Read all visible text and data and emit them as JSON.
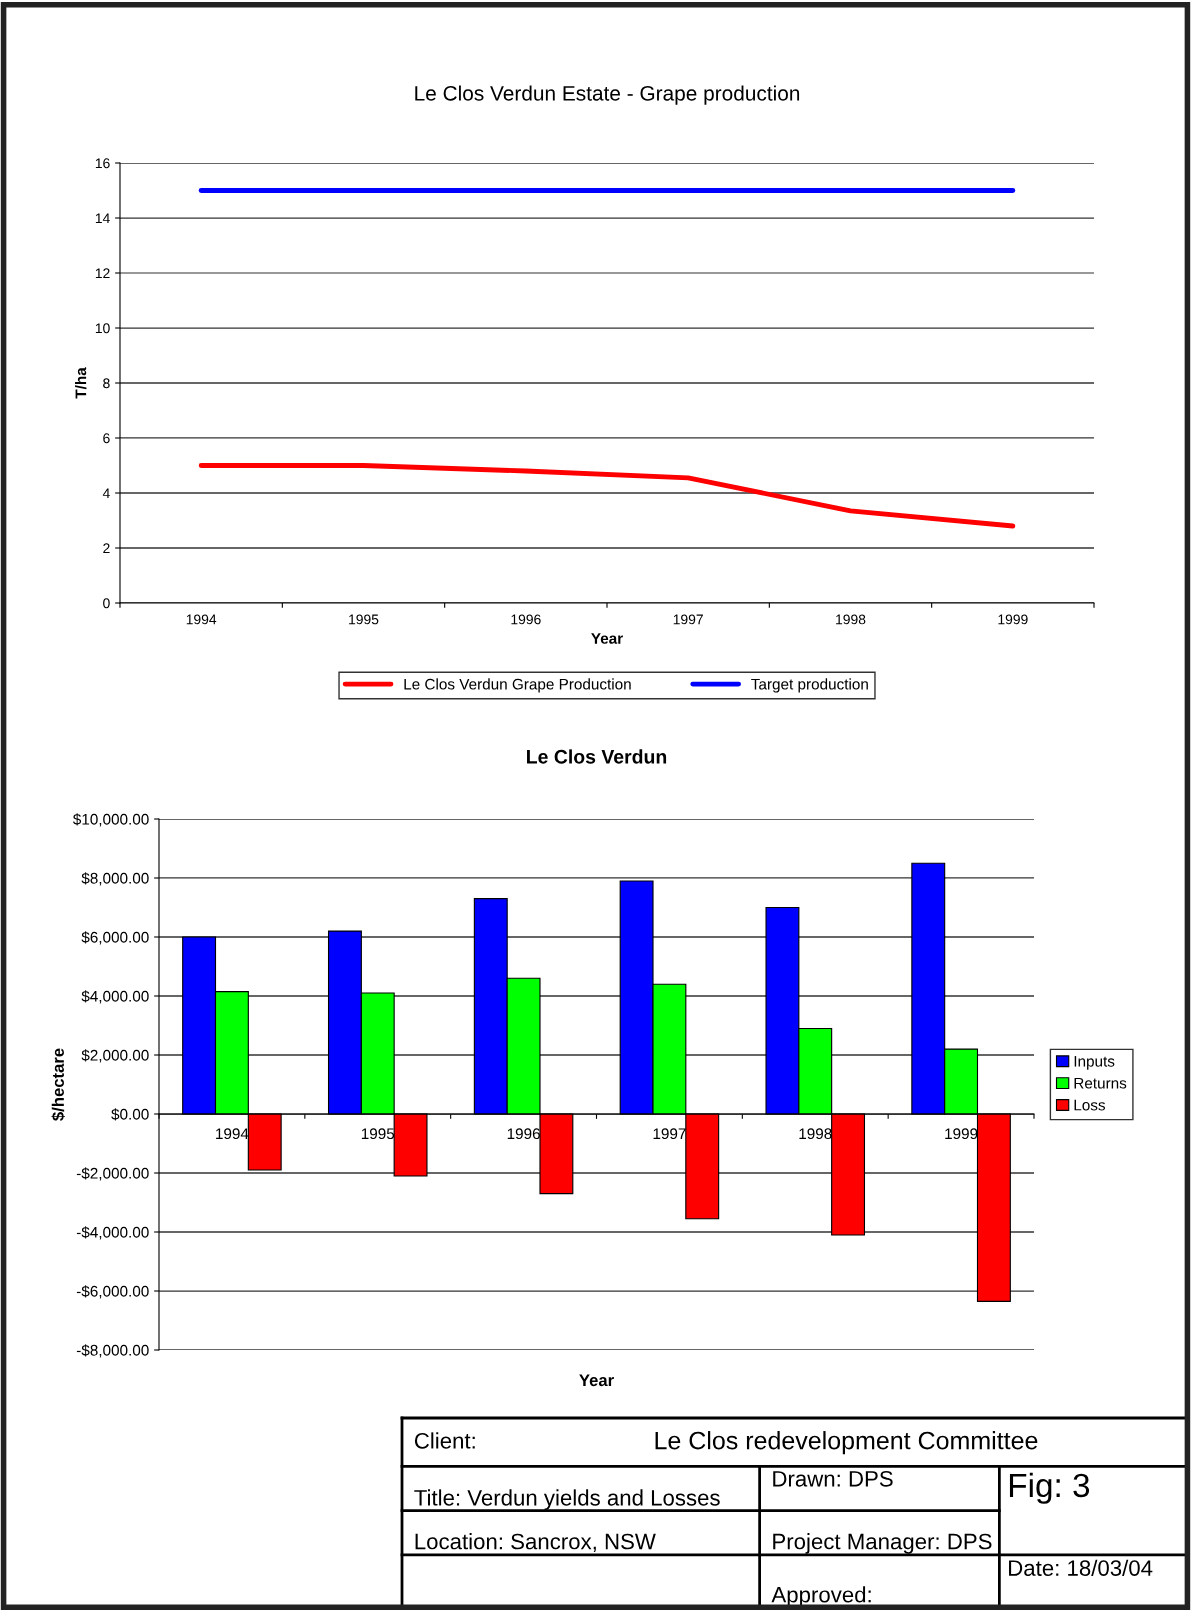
{
  "chart_data": [
    {
      "type": "line",
      "title": "Le Clos Verdun Estate - Grape production",
      "xlabel": "Year",
      "ylabel": "T/ha",
      "categories": [
        "1994",
        "1995",
        "1996",
        "1997",
        "1998",
        "1999"
      ],
      "series": [
        {
          "name": "Le Clos Verdun Grape Production",
          "color": "#ff0000",
          "values": [
            5.0,
            5.0,
            4.8,
            4.55,
            3.35,
            2.8
          ]
        },
        {
          "name": "Target production",
          "color": "#0000ff",
          "values": [
            15,
            15,
            15,
            15,
            15,
            15
          ]
        }
      ],
      "ylim": [
        0,
        16
      ],
      "yticks": [
        0,
        2,
        4,
        6,
        8,
        10,
        12,
        14,
        16
      ],
      "grid": "y",
      "legend": "bottom",
      "marker": "none",
      "line_style": "solid"
    },
    {
      "type": "bar",
      "title": "Le Clos Verdun",
      "xlabel": "Year",
      "ylabel": "$/hectare",
      "categories": [
        "1994",
        "1995",
        "1996",
        "1997",
        "1998",
        "1999"
      ],
      "series": [
        {
          "name": "Inputs",
          "color": "#0000ff",
          "values": [
            6000,
            6200,
            7300,
            7900,
            7000,
            8500
          ]
        },
        {
          "name": "Returns",
          "color": "#00ff00",
          "values": [
            4150,
            4100,
            4600,
            4400,
            2900,
            2200
          ]
        },
        {
          "name": "Loss",
          "color": "#ff0000",
          "values": [
            -1900,
            -2100,
            -2700,
            -3550,
            -4100,
            -6350
          ]
        }
      ],
      "ylim": [
        -8000,
        10000
      ],
      "yticks": [
        {
          "value": -8000,
          "label": "-$8,000.00"
        },
        {
          "value": -6000,
          "label": "-$6,000.00"
        },
        {
          "value": -4000,
          "label": "-$4,000.00"
        },
        {
          "value": -2000,
          "label": "-$2,000.00"
        },
        {
          "value": 0,
          "label": "$0.00"
        },
        {
          "value": 2000,
          "label": "$2,000.00"
        },
        {
          "value": 4000,
          "label": "$4,000.00"
        },
        {
          "value": 6000,
          "label": "$6,000.00"
        },
        {
          "value": 8000,
          "label": "$8,000.00"
        },
        {
          "value": 10000,
          "label": "$10,000.00"
        }
      ],
      "grid": "y",
      "legend": "right"
    },
    {
      "type": "other",
      "annotations": [
        "Client:",
        "Le Clos redevelopment Committee",
        "Title: Verdun yields and Losses",
        "Drawn: DPS",
        "Fig: 3",
        "Location: Sancrox, NSW",
        "Project Manager: DPS",
        "Approved:",
        "Date: 18/03/04"
      ]
    }
  ]
}
